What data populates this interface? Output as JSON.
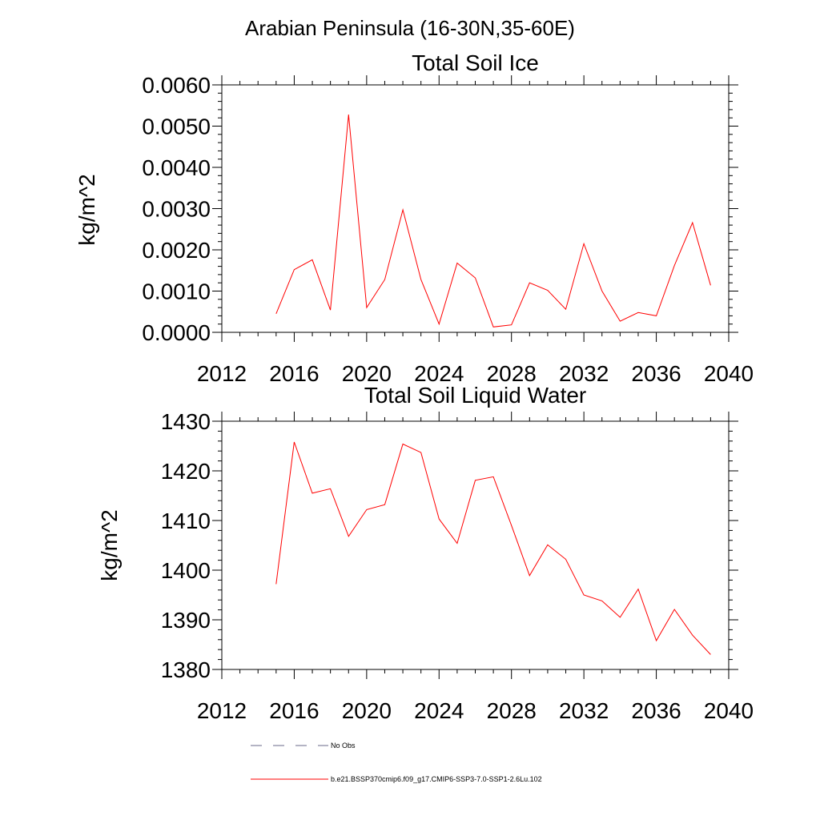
{
  "figure": {
    "title": "Arabian Peninsula (16-30N,35-60E)"
  },
  "colors": {
    "series_line": "#ff0000",
    "obs_line": "#6a6a8a",
    "axis": "#000000"
  },
  "legend": {
    "entries": [
      {
        "label": "No Obs",
        "style": "dashed",
        "color": "#6a6a8a"
      },
      {
        "label": "b.e21.BSSP370cmip6.f09_g17.CMIP6-SSP3-7.0-SSP1-2.6Lu.102",
        "style": "solid",
        "color": "#ff0000"
      }
    ]
  },
  "chart_data": [
    {
      "type": "line",
      "title": "Total Soil Ice",
      "xlabel": "",
      "ylabel": "kg/m^2",
      "xlim": [
        2012,
        2040
      ],
      "ylim": [
        0,
        0.006
      ],
      "x_ticks": [
        2012,
        2016,
        2020,
        2024,
        2028,
        2032,
        2036,
        2040
      ],
      "y_ticks": [
        "0.0000",
        "0.0010",
        "0.0020",
        "0.0030",
        "0.0040",
        "0.0050",
        "0.0060"
      ],
      "grid": false,
      "series": [
        {
          "name": "b.e21.BSSP370cmip6.f09_g17.CMIP6-SSP3-7.0-SSP1-2.6Lu.102",
          "x": [
            2015,
            2016,
            2017,
            2018,
            2019,
            2020,
            2021,
            2022,
            2023,
            2024,
            2025,
            2026,
            2027,
            2028,
            2029,
            2030,
            2031,
            2032,
            2033,
            2034,
            2035,
            2036,
            2037,
            2038,
            2039
          ],
          "values": [
            0.00045,
            0.00152,
            0.00176,
            0.00054,
            0.00528,
            0.0006,
            0.00128,
            0.00297,
            0.00128,
            0.0002,
            0.00168,
            0.00132,
            0.00013,
            0.00018,
            0.0012,
            0.00102,
            0.00056,
            0.00215,
            0.001,
            0.00027,
            0.00048,
            0.0004,
            0.00162,
            0.00266,
            0.00114
          ]
        }
      ]
    },
    {
      "type": "line",
      "title": "Total Soil Liquid Water",
      "xlabel": "",
      "ylabel": "kg/m^2",
      "xlim": [
        2012,
        2040
      ],
      "ylim": [
        1380,
        1430
      ],
      "x_ticks": [
        2012,
        2016,
        2020,
        2024,
        2028,
        2032,
        2036,
        2040
      ],
      "y_ticks": [
        "1380",
        "1390",
        "1400",
        "1410",
        "1420",
        "1430"
      ],
      "grid": false,
      "series": [
        {
          "name": "b.e21.BSSP370cmip6.f09_g17.CMIP6-SSP3-7.0-SSP1-2.6Lu.102",
          "x": [
            2015,
            2016,
            2017,
            2018,
            2019,
            2020,
            2021,
            2022,
            2023,
            2024,
            2025,
            2026,
            2027,
            2028,
            2029,
            2030,
            2031,
            2032,
            2033,
            2034,
            2035,
            2036,
            2037,
            2038,
            2039
          ],
          "values": [
            1397.2,
            1425.8,
            1415.5,
            1416.4,
            1406.8,
            1412.2,
            1413.2,
            1425.4,
            1423.7,
            1410.3,
            1405.4,
            1418.1,
            1418.8,
            1409.0,
            1398.9,
            1405.1,
            1402.2,
            1395.0,
            1393.8,
            1390.5,
            1396.2,
            1385.8,
            1392.1,
            1386.9,
            1383.0
          ]
        }
      ]
    }
  ]
}
